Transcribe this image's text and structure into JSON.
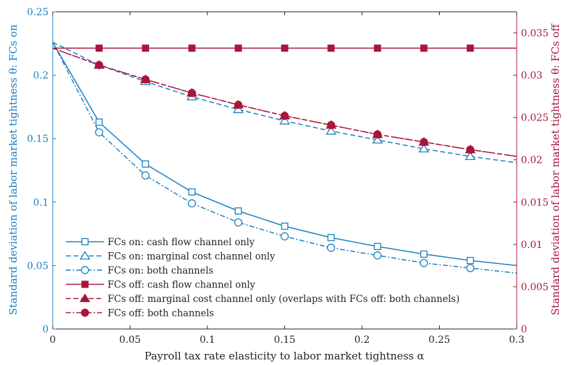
{
  "chart_data": {
    "type": "line",
    "title": "",
    "xlabel": "Payroll tax rate elasticity to labor market tightness α",
    "ylabel_left": "Standard deviation of labor market tightness θ: FCs on",
    "ylabel_right": "Standard deviation of labor market tightness θ: FCs off",
    "xlim": [
      0,
      0.3
    ],
    "ylim_left": [
      0,
      0.25
    ],
    "ylim_right": [
      0,
      0.0375
    ],
    "xticks": [
      "0",
      "0.05",
      "0.1",
      "0.15",
      "0.2",
      "0.25",
      "0.3"
    ],
    "yticks_left": [
      "0",
      "0.05",
      "0.1",
      "0.15",
      "0.2",
      "0.25"
    ],
    "yticks_right": [
      "0",
      "0.005",
      "0.01",
      "0.015",
      "0.02",
      "0.025",
      "0.03",
      "0.035"
    ],
    "grid": false,
    "legend_position": "bottom-left",
    "colors": {
      "left": "#1a7fbf",
      "right": "#a8163a"
    },
    "series": [
      {
        "name": "FCs on: cash flow channel only",
        "axis": "left",
        "style": "solid",
        "marker": "square-open",
        "x": [
          0,
          0.03,
          0.06,
          0.09,
          0.12,
          0.15,
          0.18,
          0.21,
          0.24,
          0.27,
          0.3
        ],
        "y": [
          0.226,
          0.163,
          0.13,
          0.108,
          0.093,
          0.081,
          0.072,
          0.065,
          0.059,
          0.054,
          0.05
        ]
      },
      {
        "name": "FCs on: marginal cost channel only",
        "axis": "left",
        "style": "dashed",
        "marker": "triangle-open",
        "x": [
          0,
          0.03,
          0.06,
          0.09,
          0.12,
          0.15,
          0.18,
          0.21,
          0.24,
          0.27,
          0.3
        ],
        "y": [
          0.226,
          0.208,
          0.195,
          0.183,
          0.173,
          0.164,
          0.156,
          0.149,
          0.142,
          0.136,
          0.131
        ]
      },
      {
        "name": "FCs on: both channels",
        "axis": "left",
        "style": "dashdot",
        "marker": "circle-open",
        "x": [
          0,
          0.03,
          0.06,
          0.09,
          0.12,
          0.15,
          0.18,
          0.21,
          0.24,
          0.27,
          0.3
        ],
        "y": [
          0.226,
          0.155,
          0.121,
          0.099,
          0.084,
          0.073,
          0.064,
          0.058,
          0.052,
          0.048,
          0.044
        ]
      },
      {
        "name": "FCs off: cash flow channel only",
        "axis": "right",
        "style": "solid",
        "marker": "square-filled",
        "x": [
          0,
          0.03,
          0.06,
          0.09,
          0.12,
          0.15,
          0.18,
          0.21,
          0.24,
          0.27,
          0.3
        ],
        "y": [
          0.0332,
          0.0332,
          0.0332,
          0.0332,
          0.0332,
          0.0332,
          0.0332,
          0.0332,
          0.0332,
          0.0332,
          0.0332
        ]
      },
      {
        "name": "FCs off: marginal cost channel only (overlaps with FCs off: both channels)",
        "axis": "right",
        "style": "dashed",
        "marker": "triangle-filled",
        "x": [
          0,
          0.03,
          0.06,
          0.09,
          0.12,
          0.15,
          0.18,
          0.21,
          0.24,
          0.27,
          0.3
        ],
        "y": [
          0.0332,
          0.0312,
          0.0295,
          0.0279,
          0.0265,
          0.0252,
          0.0241,
          0.023,
          0.0221,
          0.0212,
          0.0204
        ]
      },
      {
        "name": "FCs off: both channels",
        "axis": "right",
        "style": "dashdot",
        "marker": "circle-filled",
        "x": [
          0,
          0.03,
          0.06,
          0.09,
          0.12,
          0.15,
          0.18,
          0.21,
          0.24,
          0.27,
          0.3
        ],
        "y": [
          0.0332,
          0.0312,
          0.0295,
          0.0279,
          0.0265,
          0.0252,
          0.0241,
          0.023,
          0.0221,
          0.0212,
          0.0204
        ]
      }
    ]
  }
}
